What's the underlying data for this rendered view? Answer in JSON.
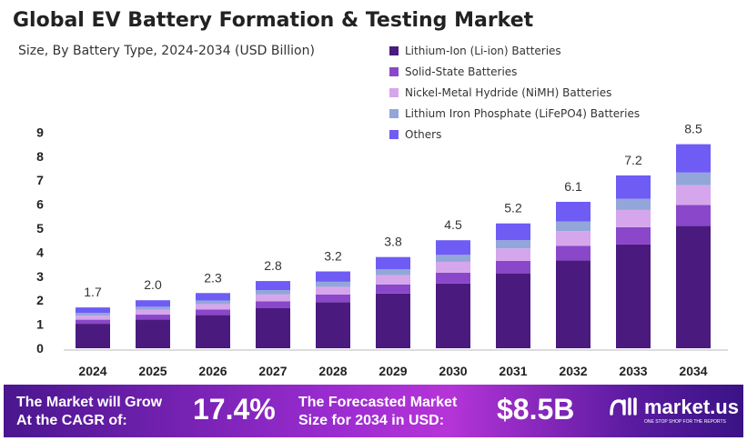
{
  "title": "Global EV Battery Formation & Testing Market",
  "subtitle": "Size, By Battery Type, 2024-2034 (USD Billion)",
  "chart_data": {
    "type": "bar",
    "stacked": true,
    "title": "Global EV Battery Formation & Testing Market",
    "subtitle": "Size, By Battery Type, 2024-2034 (USD Billion)",
    "categories": [
      "2024",
      "2025",
      "2026",
      "2027",
      "2028",
      "2029",
      "2030",
      "2031",
      "2032",
      "2033",
      "2034"
    ],
    "totals": [
      1.7,
      2.0,
      2.3,
      2.8,
      3.2,
      3.8,
      4.5,
      5.2,
      6.1,
      7.2,
      8.5
    ],
    "series": [
      {
        "name": "Lithium-Ion (Li-ion) Batteries",
        "color": "#4B1A7E",
        "values": [
          1.02,
          1.2,
          1.38,
          1.68,
          1.92,
          2.28,
          2.7,
          3.12,
          3.66,
          4.32,
          5.1
        ]
      },
      {
        "name": "Solid-State Batteries",
        "color": "#8A47C9",
        "values": [
          0.17,
          0.2,
          0.23,
          0.28,
          0.32,
          0.38,
          0.45,
          0.52,
          0.61,
          0.72,
          0.87
        ]
      },
      {
        "name": "Nickel-Metal Hydride (NiMH) Batteries",
        "color": "#D6A6EC",
        "values": [
          0.17,
          0.2,
          0.23,
          0.28,
          0.32,
          0.38,
          0.45,
          0.52,
          0.61,
          0.72,
          0.82
        ]
      },
      {
        "name": "Lithium Iron Phosphate (LiFePO4) Batteries",
        "color": "#93A6DA",
        "values": [
          0.11,
          0.13,
          0.15,
          0.18,
          0.21,
          0.25,
          0.29,
          0.34,
          0.4,
          0.47,
          0.53
        ]
      },
      {
        "name": "Others",
        "color": "#6E5CF5",
        "values": [
          0.23,
          0.27,
          0.31,
          0.38,
          0.43,
          0.51,
          0.61,
          0.7,
          0.82,
          0.97,
          1.18
        ]
      }
    ],
    "yticks": [
      0,
      1,
      2,
      3,
      4,
      5,
      6,
      7,
      8,
      9
    ],
    "ylim": [
      0,
      9
    ],
    "grid": false,
    "legend": "top-right"
  },
  "banner": {
    "cagr_label": "The Market will Grow At the CAGR of:",
    "cagr_value": "17.4%",
    "forecast_label": "The Forecasted Market Size for 2034 in USD:",
    "forecast_value": "$8.5B",
    "logo": "market.us",
    "tagline": "ONE STOP SHOP FOR THE REPORTS"
  }
}
